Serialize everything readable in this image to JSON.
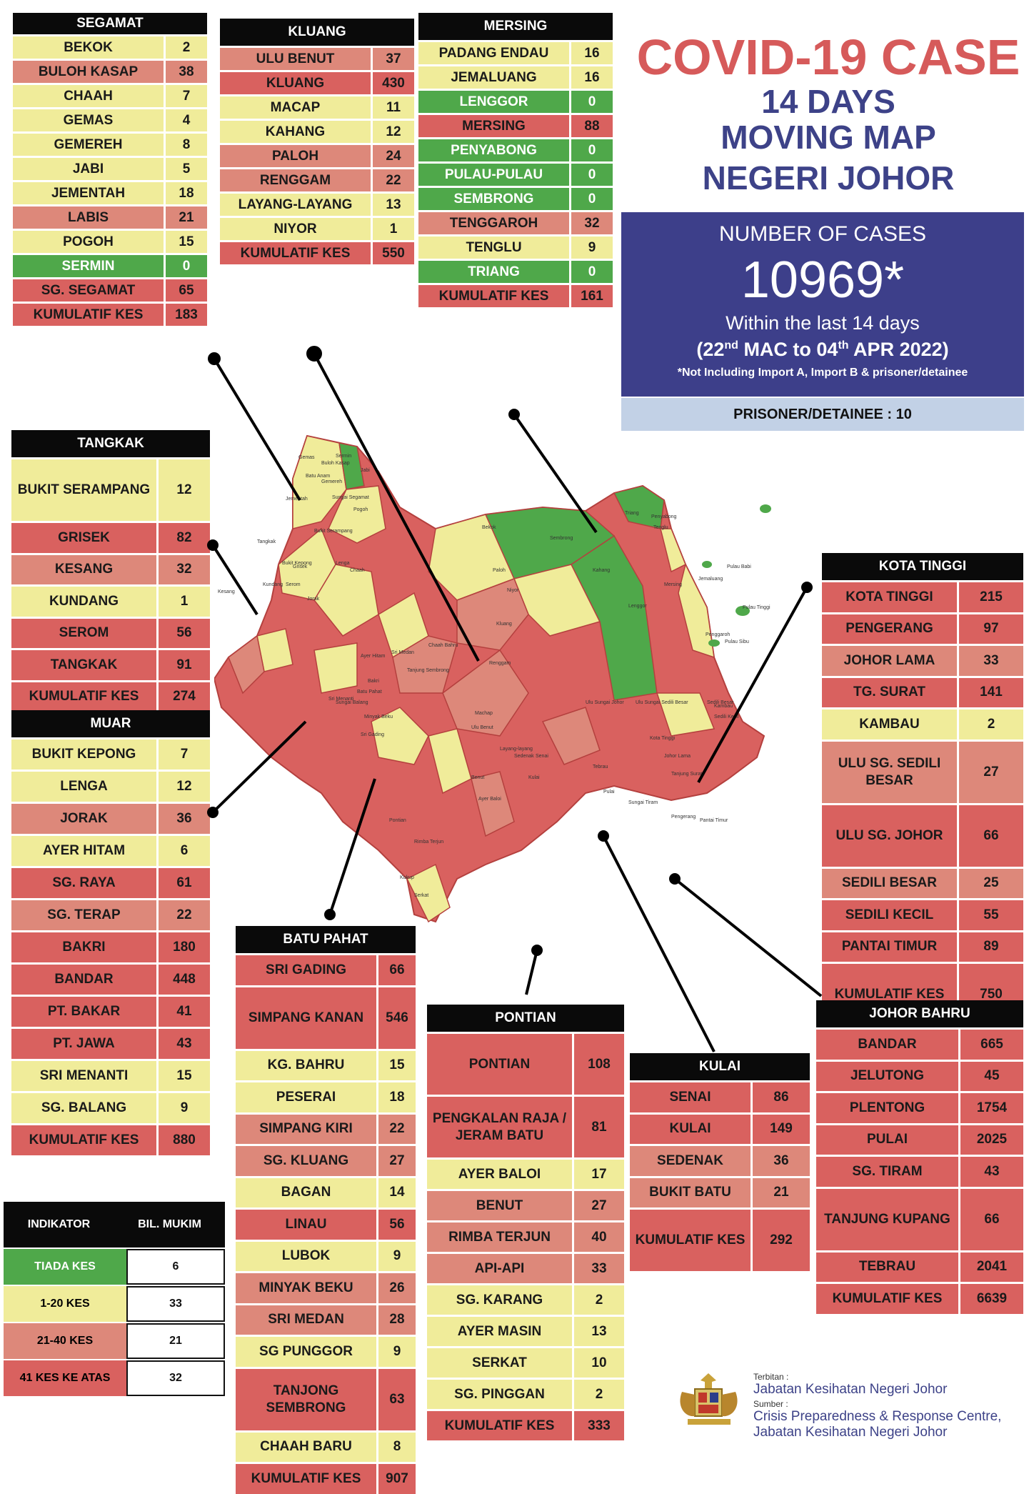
{
  "title": {
    "line1": "COVID-19 CASE",
    "line2": "14 DAYS",
    "line3": "MOVING MAP",
    "line4": "NEGERI JOHOR"
  },
  "summary": {
    "label": "NUMBER OF CASES",
    "total": "10969*",
    "within": "Within the last 14 days",
    "range_open": "(22",
    "range_sup1": "nd",
    "range_mid": " MAC to 04",
    "range_sup2": "th",
    "range_close": " APR 2022)",
    "note": "*Not Including Import A, Import B & prisoner/detainee",
    "prisoner": "PRISONER/DETAINEE : 10"
  },
  "colors": {
    "c0": "#4fa84a",
    "c1": "#f0ec9a",
    "c2": "#dd887a",
    "c3": "#d9615f"
  },
  "districts": {
    "segamat": {
      "name": "SEGAMAT",
      "rows": [
        {
          "n": "BEKOK",
          "v": "2",
          "c": 1
        },
        {
          "n": "BULOH KASAP",
          "v": "38",
          "c": 2
        },
        {
          "n": "CHAAH",
          "v": "7",
          "c": 1
        },
        {
          "n": "GEMAS",
          "v": "4",
          "c": 1
        },
        {
          "n": "GEMEREH",
          "v": "8",
          "c": 1
        },
        {
          "n": "JABI",
          "v": "5",
          "c": 1
        },
        {
          "n": "JEMENTAH",
          "v": "18",
          "c": 1
        },
        {
          "n": "LABIS",
          "v": "21",
          "c": 2
        },
        {
          "n": "POGOH",
          "v": "15",
          "c": 1
        },
        {
          "n": "SERMIN",
          "v": "0",
          "c": 0
        },
        {
          "n": "SG. SEGAMAT",
          "v": "65",
          "c": 3
        },
        {
          "n": "KUMULATIF KES",
          "v": "183",
          "c": 3
        }
      ]
    },
    "kluang": {
      "name": "KLUANG",
      "rows": [
        {
          "n": "ULU BENUT",
          "v": "37",
          "c": 2
        },
        {
          "n": "KLUANG",
          "v": "430",
          "c": 3
        },
        {
          "n": "MACAP",
          "v": "11",
          "c": 1
        },
        {
          "n": "KAHANG",
          "v": "12",
          "c": 1
        },
        {
          "n": "PALOH",
          "v": "24",
          "c": 2
        },
        {
          "n": "RENGGAM",
          "v": "22",
          "c": 2
        },
        {
          "n": "LAYANG-LAYANG",
          "v": "13",
          "c": 1
        },
        {
          "n": "NIYOR",
          "v": "1",
          "c": 1
        },
        {
          "n": "KUMULATIF KES",
          "v": "550",
          "c": 3
        }
      ]
    },
    "mersing": {
      "name": "MERSING",
      "rows": [
        {
          "n": "PADANG ENDAU",
          "v": "16",
          "c": 1
        },
        {
          "n": "JEMALUANG",
          "v": "16",
          "c": 1
        },
        {
          "n": "LENGGOR",
          "v": "0",
          "c": 0
        },
        {
          "n": "MERSING",
          "v": "88",
          "c": 3
        },
        {
          "n": "PENYABONG",
          "v": "0",
          "c": 0
        },
        {
          "n": "PULAU-PULAU",
          "v": "0",
          "c": 0
        },
        {
          "n": "SEMBRONG",
          "v": "0",
          "c": 0
        },
        {
          "n": "TENGGAROH",
          "v": "32",
          "c": 2
        },
        {
          "n": "TENGLU",
          "v": "9",
          "c": 1
        },
        {
          "n": "TRIANG",
          "v": "0",
          "c": 0
        },
        {
          "n": "KUMULATIF KES",
          "v": "161",
          "c": 3
        }
      ]
    },
    "tangkak": {
      "name": "TANGKAK",
      "rows": [
        {
          "n": "BUKIT SERAMPANG",
          "v": "12",
          "c": 1,
          "h": 2
        },
        {
          "n": "GRISEK",
          "v": "82",
          "c": 3
        },
        {
          "n": "KESANG",
          "v": "32",
          "c": 2
        },
        {
          "n": "KUNDANG",
          "v": "1",
          "c": 1
        },
        {
          "n": "SEROM",
          "v": "56",
          "c": 3
        },
        {
          "n": "TANGKAK",
          "v": "91",
          "c": 3
        },
        {
          "n": "KUMULATIF KES",
          "v": "274",
          "c": 3
        }
      ]
    },
    "muar": {
      "name": "MUAR",
      "rows": [
        {
          "n": "BUKIT KEPONG",
          "v": "7",
          "c": 1
        },
        {
          "n": "LENGA",
          "v": "12",
          "c": 1
        },
        {
          "n": "JORAK",
          "v": "36",
          "c": 2
        },
        {
          "n": "AYER HITAM",
          "v": "6",
          "c": 1
        },
        {
          "n": "SG. RAYA",
          "v": "61",
          "c": 3
        },
        {
          "n": "SG. TERAP",
          "v": "22",
          "c": 2
        },
        {
          "n": "BAKRI",
          "v": "180",
          "c": 3
        },
        {
          "n": "BANDAR",
          "v": "448",
          "c": 3
        },
        {
          "n": "PT. BAKAR",
          "v": "41",
          "c": 3
        },
        {
          "n": "PT. JAWA",
          "v": "43",
          "c": 3
        },
        {
          "n": "SRI MENANTI",
          "v": "15",
          "c": 1
        },
        {
          "n": "SG. BALANG",
          "v": "9",
          "c": 1
        },
        {
          "n": "KUMULATIF KES",
          "v": "880",
          "c": 3
        }
      ]
    },
    "kota_tinggi": {
      "name": "KOTA TINGGI",
      "rows": [
        {
          "n": "KOTA TINGGI",
          "v": "215",
          "c": 3
        },
        {
          "n": "PENGERANG",
          "v": "97",
          "c": 3
        },
        {
          "n": "JOHOR LAMA",
          "v": "33",
          "c": 2
        },
        {
          "n": "TG. SURAT",
          "v": "141",
          "c": 3
        },
        {
          "n": "KAMBAU",
          "v": "2",
          "c": 1
        },
        {
          "n": "ULU SG. SEDILI BESAR",
          "v": "27",
          "c": 2,
          "h": 2
        },
        {
          "n": "ULU  SG. JOHOR",
          "v": "66",
          "c": 3,
          "h": 2
        },
        {
          "n": "SEDILI BESAR",
          "v": "25",
          "c": 2
        },
        {
          "n": "SEDILI KECIL",
          "v": "55",
          "c": 3
        },
        {
          "n": "PANTAI TIMUR",
          "v": "89",
          "c": 3
        },
        {
          "n": "KUMULATIF KES",
          "v": "750",
          "c": 3,
          "h": 2
        }
      ]
    },
    "batu_pahat": {
      "name": "BATU PAHAT",
      "rows": [
        {
          "n": "SRI GADING",
          "v": "66",
          "c": 3
        },
        {
          "n": "SIMPANG KANAN",
          "v": "546",
          "c": 3,
          "h": 2
        },
        {
          "n": "KG. BAHRU",
          "v": "15",
          "c": 1
        },
        {
          "n": "PESERAI",
          "v": "18",
          "c": 1
        },
        {
          "n": "SIMPANG KIRI",
          "v": "22",
          "c": 2
        },
        {
          "n": "SG. KLUANG",
          "v": "27",
          "c": 2
        },
        {
          "n": "BAGAN",
          "v": "14",
          "c": 1
        },
        {
          "n": "LINAU",
          "v": "56",
          "c": 3
        },
        {
          "n": "LUBOK",
          "v": "9",
          "c": 1
        },
        {
          "n": "MINYAK BEKU",
          "v": "26",
          "c": 2
        },
        {
          "n": "SRI MEDAN",
          "v": "28",
          "c": 2
        },
        {
          "n": "SG PUNGGOR",
          "v": "9",
          "c": 1
        },
        {
          "n": "TANJONG SEMBRONG",
          "v": "63",
          "c": 3,
          "h": 2
        },
        {
          "n": "CHAAH BARU",
          "v": "8",
          "c": 1
        },
        {
          "n": "KUMULATIF KES",
          "v": "907",
          "c": 3
        }
      ]
    },
    "pontian": {
      "name": "PONTIAN",
      "rows": [
        {
          "n": "PONTIAN",
          "v": "108",
          "c": 3,
          "h": 2
        },
        {
          "n": "PENGKALAN RAJA / JERAM BATU",
          "v": "81",
          "c": 3,
          "h": 2
        },
        {
          "n": "AYER BALOI",
          "v": "17",
          "c": 1
        },
        {
          "n": "BENUT",
          "v": "27",
          "c": 2
        },
        {
          "n": "RIMBA TERJUN",
          "v": "40",
          "c": 2
        },
        {
          "n": "API-API",
          "v": "33",
          "c": 2
        },
        {
          "n": "SG. KARANG",
          "v": "2",
          "c": 1
        },
        {
          "n": "AYER MASIN",
          "v": "13",
          "c": 1
        },
        {
          "n": "SERKAT",
          "v": "10",
          "c": 1
        },
        {
          "n": "SG. PINGGAN",
          "v": "2",
          "c": 1
        },
        {
          "n": "KUMULATIF KES",
          "v": "333",
          "c": 3
        }
      ]
    },
    "kulai": {
      "name": "KULAI",
      "rows": [
        {
          "n": "SENAI",
          "v": "86",
          "c": 3
        },
        {
          "n": "KULAI",
          "v": "149",
          "c": 3
        },
        {
          "n": "SEDENAK",
          "v": "36",
          "c": 2
        },
        {
          "n": "BUKIT BATU",
          "v": "21",
          "c": 2
        },
        {
          "n": "KUMULATIF KES",
          "v": "292",
          "c": 3,
          "h": 2
        }
      ]
    },
    "johor_bahru": {
      "name": "JOHOR BAHRU",
      "rows": [
        {
          "n": "BANDAR",
          "v": "665",
          "c": 3
        },
        {
          "n": "JELUTONG",
          "v": "45",
          "c": 3
        },
        {
          "n": "PLENTONG",
          "v": "1754",
          "c": 3
        },
        {
          "n": "PULAI",
          "v": "2025",
          "c": 3
        },
        {
          "n": "SG. TIRAM",
          "v": "43",
          "c": 3
        },
        {
          "n": "TANJUNG KUPANG",
          "v": "66",
          "c": 3,
          "h": 2
        },
        {
          "n": "TEBRAU",
          "v": "2041",
          "c": 3
        },
        {
          "n": "KUMULATIF KES",
          "v": "6639",
          "c": 3
        }
      ]
    }
  },
  "indicator": {
    "head1": "INDIKATOR",
    "head2": "BIL. MUKIM",
    "rows": [
      {
        "n": "TIADA KES",
        "v": "6",
        "c": 0
      },
      {
        "n": "1-20 KES",
        "v": "33",
        "c": 1
      },
      {
        "n": "21-40 KES",
        "v": "21",
        "c": 2
      },
      {
        "n": "41 KES KE ATAS",
        "v": "32",
        "c": 3
      }
    ]
  },
  "footer": {
    "terbitan": "Terbitan :",
    "publisher": "Jabatan Kesihatan Negeri Johor",
    "sumber": "Sumber :",
    "source1": "Crisis Preparedness & Response Centre,",
    "source2": "Jabatan Kesihatan Negeri Johor"
  },
  "map_labels": [
    "Gemas",
    "Buloh Kasap",
    "Sermin",
    "Jabi",
    "Batu Anam",
    "Gemereh",
    "Sungai Segamat",
    "Pogoh",
    "Jementah",
    "Bukit Serampang",
    "Tangkak",
    "Bukit Kepong",
    "Lenga",
    "Grisek",
    "Serom",
    "Kundang",
    "Kesang",
    "Jorak",
    "Chaah",
    "Bekok",
    "Paloh",
    "Niyor",
    "Sembrong",
    "Kahang",
    "Lenggor",
    "Mersing",
    "Jemaluang",
    "Tenglu",
    "Triang",
    "Penyabong",
    "Penggaroh",
    "Pulau Babi",
    "Pulau Tinggi",
    "Pulau Sibu",
    "Kluang",
    "Renggam",
    "Chaah Bahru",
    "Sri Medan",
    "Tanjung Sembrong",
    "Ayer Hitam",
    "Bakri",
    "Sri Gading",
    "Ulu Benut",
    "Machap",
    "Layang-layang",
    "Sedenak",
    "Senai",
    "Kulai",
    "Benut",
    "Ayer Baloi",
    "Pontian",
    "Rimba Terjun",
    "Ulu Sungai Johor",
    "Ulu Sungai Sedili Besar",
    "Sedili Besar",
    "Kambau",
    "Sedili Kecil",
    "Kota Tinggi",
    "Johor Lama",
    "Tanjung Surat",
    "Tebrau",
    "Pulai",
    "Sungai Tiram",
    "Pengerang",
    "Pantai Timur",
    "Kukup",
    "Serkat",
    "Batu Pahat",
    "Minyak Beku",
    "Sri Menanti",
    "Sungai Balang"
  ]
}
